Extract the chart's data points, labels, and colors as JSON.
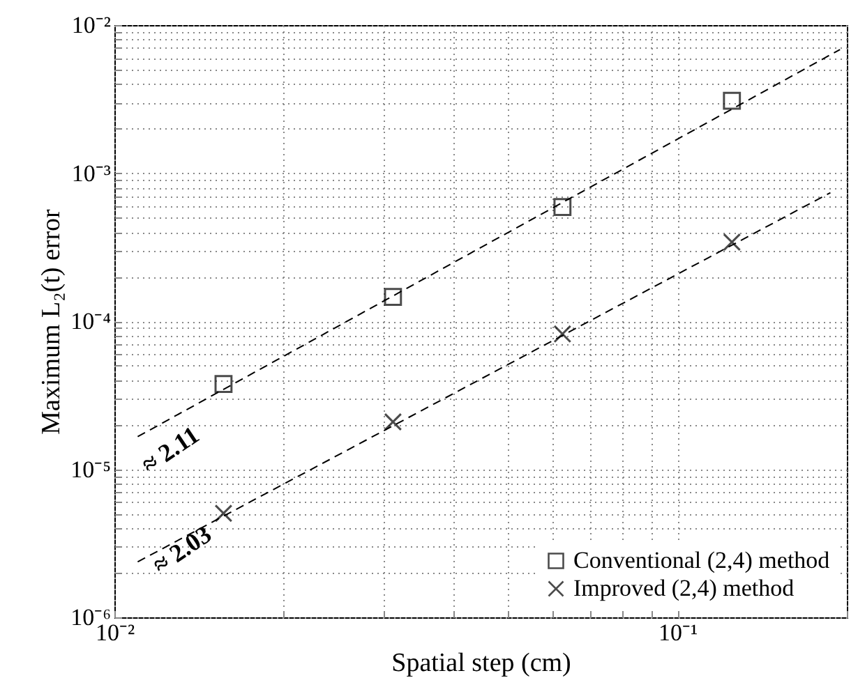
{
  "chart_data": {
    "type": "scatter",
    "xlabel": "Spatial step (cm)",
    "ylabel": "Maximum L₂(t) error",
    "log": "xy",
    "grid": true,
    "legend": "bottom right",
    "xlim": [
      0.01,
      0.2
    ],
    "xticks": [
      {
        "value": 0.01,
        "label": "10⁻²"
      },
      {
        "value": 0.02,
        "label": null
      },
      {
        "value": 0.03,
        "label": null
      },
      {
        "value": 0.04,
        "label": null
      },
      {
        "value": 0.05,
        "label": null
      },
      {
        "value": 0.06,
        "label": null
      },
      {
        "value": 0.07,
        "label": null
      },
      {
        "value": 0.08,
        "label": null
      },
      {
        "value": 0.09,
        "label": null
      },
      {
        "value": 0.1,
        "label": "10⁻¹"
      },
      {
        "value": 0.2,
        "label": null
      }
    ],
    "ylim": [
      1e-06,
      0.01
    ],
    "yticks": [
      {
        "value": 1e-06,
        "label": "10⁻⁶"
      },
      {
        "value": 2e-06,
        "label": null
      },
      {
        "value": 3e-06,
        "label": null
      },
      {
        "value": 4e-06,
        "label": null
      },
      {
        "value": 5e-06,
        "label": null
      },
      {
        "value": 6e-06,
        "label": null
      },
      {
        "value": 7e-06,
        "label": null
      },
      {
        "value": 8e-06,
        "label": null
      },
      {
        "value": 9e-06,
        "label": null
      },
      {
        "value": 1e-05,
        "label": "10⁻⁵"
      },
      {
        "value": 2e-05,
        "label": null
      },
      {
        "value": 3e-05,
        "label": null
      },
      {
        "value": 4e-05,
        "label": null
      },
      {
        "value": 5e-05,
        "label": null
      },
      {
        "value": 6e-05,
        "label": null
      },
      {
        "value": 7e-05,
        "label": null
      },
      {
        "value": 8e-05,
        "label": null
      },
      {
        "value": 9e-05,
        "label": null
      },
      {
        "value": 0.0001,
        "label": "10⁻⁴"
      },
      {
        "value": 0.0002,
        "label": null
      },
      {
        "value": 0.0003,
        "label": null
      },
      {
        "value": 0.0004,
        "label": null
      },
      {
        "value": 0.0005,
        "label": null
      },
      {
        "value": 0.0006,
        "label": null
      },
      {
        "value": 0.0007,
        "label": null
      },
      {
        "value": 0.0008,
        "label": null
      },
      {
        "value": 0.0009,
        "label": null
      },
      {
        "value": 0.001,
        "label": "10⁻³"
      },
      {
        "value": 0.002,
        "label": null
      },
      {
        "value": 0.003,
        "label": null
      },
      {
        "value": 0.004,
        "label": null
      },
      {
        "value": 0.005,
        "label": null
      },
      {
        "value": 0.006,
        "label": null
      },
      {
        "value": 0.007,
        "label": null
      },
      {
        "value": 0.008,
        "label": null
      },
      {
        "value": 0.009,
        "label": null
      },
      {
        "value": 0.01,
        "label": "10⁻²"
      }
    ],
    "x": [
      0.015625,
      0.03125,
      0.0625,
      0.125
    ],
    "series": [
      {
        "name": "Conventional (2,4) method",
        "color": "#000000",
        "marker": "square",
        "values": [
          3.77e-05,
          0.000146,
          0.00059,
          0.00308
        ]
      },
      {
        "name": "Improved (2,4) method",
        "color": "#000000",
        "marker": "cross",
        "values": [
          5.04e-06,
          2.09e-05,
          8.2e-05,
          0.000342
        ]
      },
      {
        "type": "line",
        "color": "#000000",
        "line_style": "dashed",
        "marker": "none",
        "x": [
          0.011,
          0.1945
        ],
        "values": [
          1.66e-05,
          0.00684
        ]
      },
      {
        "type": "line",
        "color": "#000000",
        "line_style": "dashed",
        "marker": "none",
        "x": [
          0.011,
          0.187
        ],
        "values": [
          2.37e-06,
          0.000738
        ]
      }
    ],
    "annotations": [
      "≈ 2.11",
      "≈ 2.03"
    ]
  }
}
